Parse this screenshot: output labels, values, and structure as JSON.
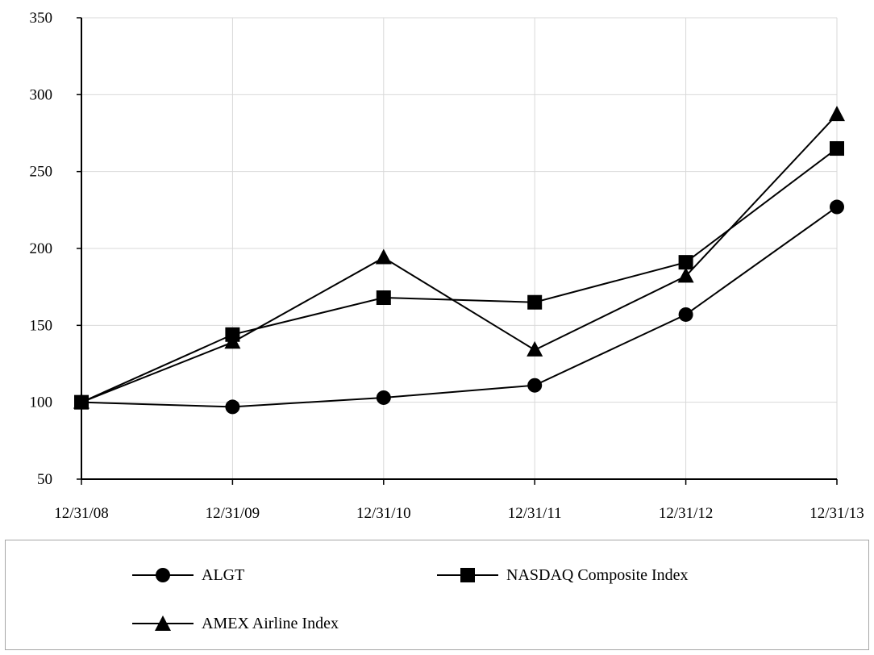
{
  "chart_data": {
    "type": "line",
    "title": "",
    "xlabel": "",
    "ylabel": "",
    "categories": [
      "12/31/08",
      "12/31/09",
      "12/31/10",
      "12/31/11",
      "12/31/12",
      "12/31/13"
    ],
    "ylim": [
      50,
      350
    ],
    "yticks": [
      "50",
      "100",
      "150",
      "200",
      "250",
      "300",
      "350"
    ],
    "grid": "vertical and horizontal, light gray",
    "legend_position": "bottom, boxed",
    "series": [
      {
        "name": "ALGT",
        "marker": "circle",
        "values": [
          100,
          97,
          103,
          111,
          157,
          227
        ]
      },
      {
        "name": "NASDAQ Composite Index",
        "marker": "square",
        "values": [
          100,
          144,
          168,
          165,
          191,
          265
        ]
      },
      {
        "name": "AMEX Airline Index",
        "marker": "triangle",
        "values": [
          100,
          139,
          194,
          134,
          182,
          287
        ]
      }
    ]
  }
}
